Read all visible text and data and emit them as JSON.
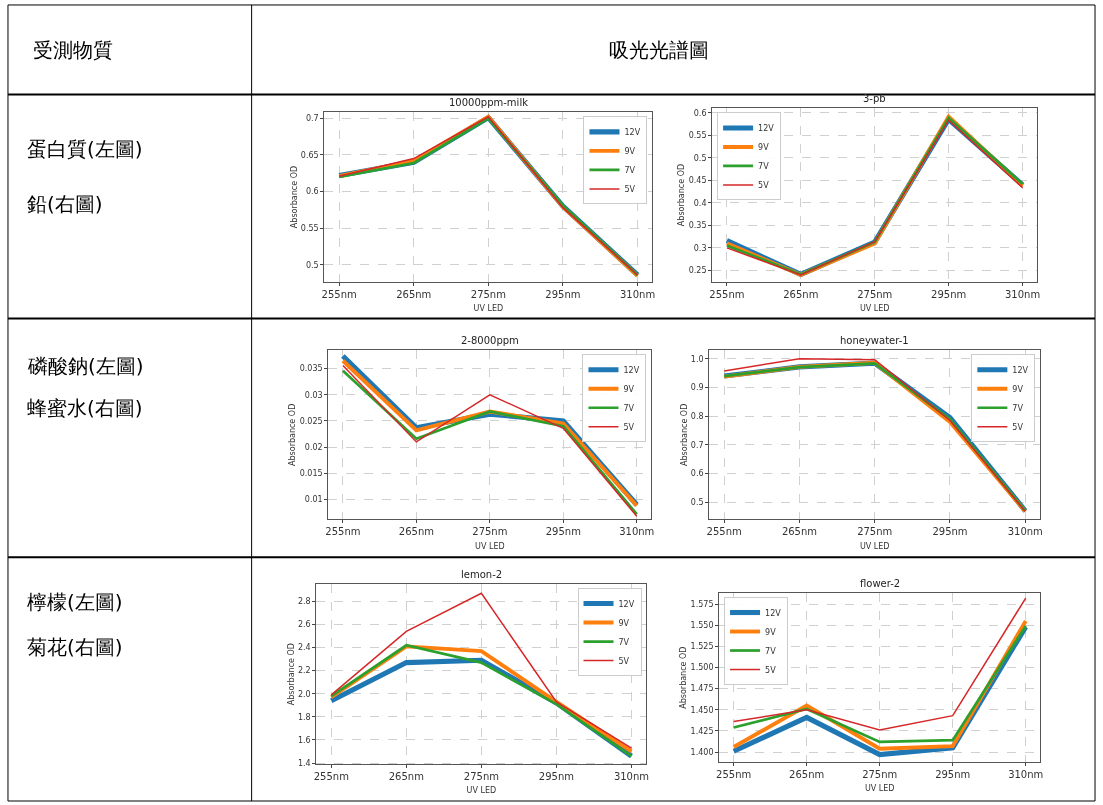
{
  "chart_data": [
    {
      "type": "other",
      "annotations": [
        "受測物質",
        "吸光光譜圖",
        "蛋白質(左圖)",
        "鉛(右圖)",
        "磷酸鈉(左圖)",
        "蜂蜜水(右圖)",
        "檸檬(左圖)",
        "菊花(右圖)"
      ]
    },
    {
      "type": "line",
      "title": "10000ppm-milk",
      "xlabel": "UV LED",
      "ylabel": "Absorbance OD",
      "categories": [
        "255nm",
        "265nm",
        "275nm",
        "295nm",
        "310nm"
      ],
      "ylim": [
        0.477,
        0.708
      ],
      "yticks": [
        0.5,
        0.55,
        0.6,
        0.65,
        0.7
      ],
      "grid": true,
      "legend": "top right",
      "series": [
        {
          "name": "12V",
          "color": "#1f77b4",
          "values": [
            0.622,
            0.64,
            0.701,
            0.58,
            0.486
          ]
        },
        {
          "name": "9V",
          "color": "#ff7f0e",
          "values": [
            0.621,
            0.642,
            0.702,
            0.579,
            0.485
          ]
        },
        {
          "name": "7V",
          "color": "#2ca02c",
          "values": [
            0.62,
            0.639,
            0.7,
            0.581,
            0.486
          ]
        },
        {
          "name": "5V",
          "color": "#d62728",
          "values": [
            0.621,
            0.645,
            0.702,
            0.578,
            0.486
          ]
        }
      ]
    },
    {
      "type": "line",
      "title": "3-pb",
      "xlabel": "UV LED",
      "ylabel": "Absorbance OD",
      "categories": [
        "255nm",
        "265nm",
        "275nm",
        "295nm",
        "310nm"
      ],
      "ylim": [
        0.225,
        0.61
      ],
      "yticks": [
        0.25,
        0.3,
        0.35,
        0.4,
        0.45,
        0.5,
        0.55,
        0.6
      ],
      "grid": true,
      "legend": "top left",
      "series": [
        {
          "name": "12V",
          "color": "#1f77b4",
          "values": [
            0.316,
            0.241,
            0.313,
            0.586,
            0.44
          ]
        },
        {
          "name": "9V",
          "color": "#ff7f0e",
          "values": [
            0.31,
            0.24,
            0.31,
            0.592,
            0.438
          ]
        },
        {
          "name": "7V",
          "color": "#2ca02c",
          "values": [
            0.305,
            0.241,
            0.313,
            0.589,
            0.442
          ]
        },
        {
          "name": "5V",
          "color": "#d62728",
          "values": [
            0.3,
            0.24,
            0.314,
            0.584,
            0.434
          ]
        }
      ]
    },
    {
      "type": "line",
      "title": "2-8000ppm",
      "xlabel": "UV LED",
      "ylabel": "Absorbance OD",
      "categories": [
        "255nm",
        "265nm",
        "275nm",
        "295nm",
        "310nm"
      ],
      "ylim": [
        0.0062,
        0.0385
      ],
      "yticks": [
        0.01,
        0.015,
        0.02,
        0.025,
        0.03,
        0.035
      ],
      "grid": true,
      "legend": "top right",
      "series": [
        {
          "name": "12V",
          "color": "#1f77b4",
          "values": [
            0.0374,
            0.0237,
            0.0263,
            0.025,
            0.009
          ]
        },
        {
          "name": "9V",
          "color": "#ff7f0e",
          "values": [
            0.0365,
            0.0232,
            0.0268,
            0.0245,
            0.0088
          ]
        },
        {
          "name": "7V",
          "color": "#2ca02c",
          "values": [
            0.0346,
            0.0216,
            0.0268,
            0.024,
            0.0072
          ]
        },
        {
          "name": "5V",
          "color": "#d62728",
          "values": [
            0.0356,
            0.021,
            0.03,
            0.0236,
            0.0068
          ]
        }
      ]
    },
    {
      "type": "line",
      "title": "honeywater-1",
      "xlabel": "UV LED",
      "ylabel": "Absorbance OD",
      "categories": [
        "255nm",
        "265nm",
        "275nm",
        "295nm",
        "310nm"
      ],
      "ylim": [
        0.44,
        1.03
      ],
      "yticks": [
        0.5,
        0.6,
        0.7,
        0.8,
        0.9,
        {
          "value": 1.0,
          "label": "1.0"
        }
      ],
      "grid": true,
      "legend": "top right",
      "series": [
        {
          "name": "12V",
          "color": "#1f77b4",
          "values": [
            0.94,
            0.972,
            0.985,
            0.795,
            0.47
          ]
        },
        {
          "name": "9V",
          "color": "#ff7f0e",
          "values": [
            0.938,
            0.972,
            0.986,
            0.78,
            0.468
          ]
        },
        {
          "name": "7V",
          "color": "#2ca02c",
          "values": [
            0.94,
            0.971,
            0.984,
            0.79,
            0.47
          ]
        },
        {
          "name": "5V",
          "color": "#d62728",
          "values": [
            0.958,
            1.0,
            0.997,
            0.785,
            0.468
          ]
        }
      ]
    },
    {
      "type": "line",
      "title": "lemon-2",
      "xlabel": "UV LED",
      "ylabel": "Absorbance OD",
      "categories": [
        "255nm",
        "265nm",
        "275nm",
        "295nm",
        "310nm"
      ],
      "ylim": [
        1.39,
        2.95
      ],
      "yticks": [
        1.4,
        1.6,
        1.8,
        {
          "value": 2.0,
          "label": "2.0"
        },
        2.2,
        2.4,
        2.6,
        2.8
      ],
      "grid": true,
      "legend": "top right",
      "series": [
        {
          "name": "12V",
          "color": "#1f77b4",
          "values": [
            1.94,
            2.27,
            2.29,
            1.92,
            1.46
          ]
        },
        {
          "name": "9V",
          "color": "#ff7f0e",
          "values": [
            1.97,
            2.41,
            2.37,
            1.93,
            1.5
          ]
        },
        {
          "name": "7V",
          "color": "#2ca02c",
          "values": [
            1.98,
            2.42,
            2.27,
            1.91,
            1.46
          ]
        },
        {
          "name": "5V",
          "color": "#d62728",
          "values": [
            1.99,
            2.54,
            2.87,
            1.93,
            1.53
          ]
        }
      ]
    },
    {
      "type": "line",
      "title": "flower-2",
      "xlabel": "UV LED",
      "ylabel": "Absorbance OD",
      "categories": [
        "255nm",
        "265nm",
        "275nm",
        "295nm",
        "310nm"
      ],
      "ylim": [
        1.388,
        1.588
      ],
      "yticks": [
        {
          "value": 1.4,
          "label": "1.400"
        },
        {
          "value": 1.425,
          "label": "1.425"
        },
        {
          "value": 1.45,
          "label": "1.450"
        },
        {
          "value": 1.475,
          "label": "1.475"
        },
        {
          "value": 1.5,
          "label": "1.500"
        },
        {
          "value": 1.525,
          "label": "1.525"
        },
        {
          "value": 1.55,
          "label": "1.550"
        },
        {
          "value": 1.575,
          "label": "1.575"
        }
      ],
      "grid": true,
      "legend": "top left",
      "series": [
        {
          "name": "12V",
          "color": "#1f77b4",
          "values": [
            1.401,
            1.441,
            1.397,
            1.405,
            1.548
          ]
        },
        {
          "name": "9V",
          "color": "#ff7f0e",
          "values": [
            1.406,
            1.455,
            1.404,
            1.407,
            1.555
          ]
        },
        {
          "name": "7V",
          "color": "#2ca02c",
          "values": [
            1.429,
            1.451,
            1.412,
            1.414,
            1.549
          ]
        },
        {
          "name": "5V",
          "color": "#d62728",
          "values": [
            1.436,
            1.45,
            1.426,
            1.443,
            1.582
          ]
        }
      ]
    }
  ]
}
